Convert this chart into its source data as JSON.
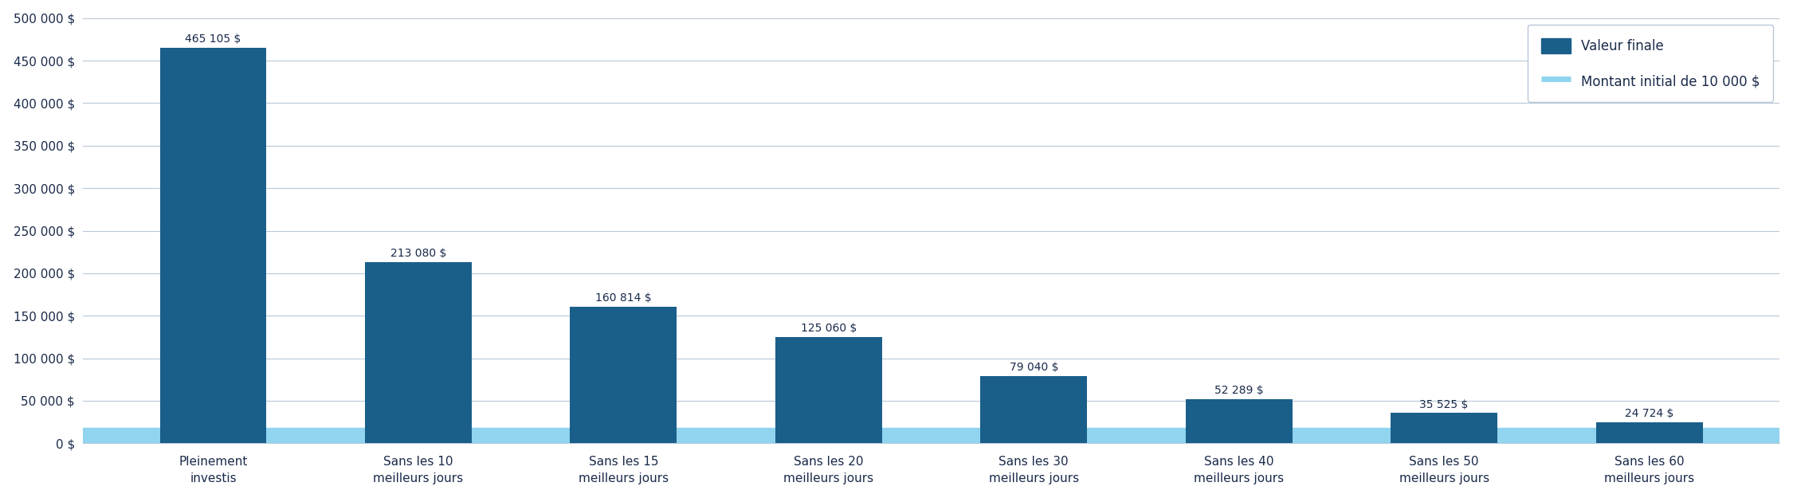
{
  "categories": [
    "Pleinement\ninvestis",
    "Sans les 10\nmeilleurs jours",
    "Sans les 15\nmeilleurs jours",
    "Sans les 20\nmeilleurs jours",
    "Sans les 30\nmeilleurs jours",
    "Sans les 40\nmeilleurs jours",
    "Sans les 50\nmeilleurs jours",
    "Sans les 60\nmeilleurs jours"
  ],
  "values": [
    465105,
    213080,
    160814,
    125060,
    79040,
    52289,
    35525,
    24724
  ],
  "labels": [
    "465 105 $",
    "213 080 $",
    "160 814 $",
    "125 060 $",
    "79 040 $",
    "52 289 $",
    "35 525 $",
    "24 724 $"
  ],
  "bar_color": "#1a5f8a",
  "initial_line_value": 10000,
  "initial_line_color": "#90d4f0",
  "background_color": "#ffffff",
  "plot_bg_color": "#ffffff",
  "grid_color": "#b8c8d8",
  "text_color": "#1a2a4a",
  "ylim": [
    0,
    500000
  ],
  "yticks": [
    0,
    50000,
    100000,
    150000,
    200000,
    250000,
    300000,
    350000,
    400000,
    450000,
    500000
  ],
  "ytick_labels": [
    "0 $",
    "50 000 $",
    "100 000 $",
    "150 000 $",
    "200 000 $",
    "250 000 $",
    "300 000 $",
    "350 000 $",
    "400 000 $",
    "450 000 $",
    "500 000 $"
  ],
  "legend_bar_label": "Valeur finale",
  "legend_line_label": "Montant initial de 10 000 $",
  "label_fontsize": 10,
  "tick_fontsize": 11,
  "bar_width": 0.52
}
